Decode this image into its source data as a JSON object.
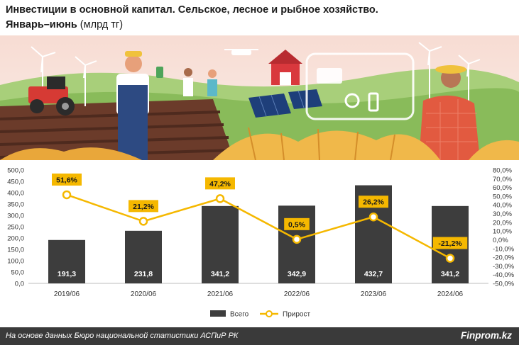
{
  "header": {
    "title": "Инвестиции в основной капитал. Сельское, лесное и рыбное хозяйство.",
    "subtitle_bold": "Январь–июнь",
    "subtitle_rest": " (млрд тг)"
  },
  "footer": {
    "source": "На основе данных Бюро национальной статистики АСПиР РК",
    "brand": "Finprom.kz"
  },
  "colors": {
    "bar": "#3d3d3d",
    "line": "#f5b800",
    "label_box": "#f5b800",
    "footer": "#3a3a3a"
  },
  "chart_data": {
    "type": "bar",
    "categories": [
      "2019/06",
      "2020/06",
      "2021/06",
      "2022/06",
      "2023/06",
      "2024/06"
    ],
    "series": [
      {
        "name": "Всего",
        "type": "bar",
        "axis": "left",
        "values": [
          191.3,
          231.8,
          341.2,
          342.9,
          432.7,
          341.2
        ],
        "labels": [
          "191,3",
          "231,8",
          "341,2",
          "342,9",
          "432,7",
          "341,2"
        ]
      },
      {
        "name": "Прирост",
        "type": "line",
        "axis": "right",
        "values": [
          51.6,
          21.2,
          47.2,
          0.5,
          26.2,
          -21.2
        ],
        "labels": [
          "51,6%",
          "21,2%",
          "47,2%",
          "0,5%",
          "26,2%",
          "-21,2%"
        ]
      }
    ],
    "y_left": {
      "min": 0,
      "max": 500,
      "ticks": [
        0,
        50,
        100,
        150,
        200,
        250,
        300,
        350,
        400,
        450,
        500
      ],
      "tick_labels": [
        "0,0",
        "50,0",
        "100,0",
        "150,0",
        "200,0",
        "250,0",
        "300,0",
        "350,0",
        "400,0",
        "450,0",
        "500,0"
      ]
    },
    "y_right": {
      "min": -50,
      "max": 80,
      "ticks": [
        -50,
        -40,
        -30,
        -20,
        -10,
        0,
        10,
        20,
        30,
        40,
        50,
        60,
        70,
        80
      ],
      "tick_labels": [
        "-50,0%",
        "-40,0%",
        "-30,0%",
        "-20,0%",
        "-10,0%",
        "0,0%",
        "10,0%",
        "20,0%",
        "30,0%",
        "40,0%",
        "50,0%",
        "60,0%",
        "70,0%",
        "80,0%"
      ]
    },
    "legend": {
      "position": "bottom",
      "items": [
        "Всего",
        "Прирост"
      ]
    },
    "grid": false
  }
}
